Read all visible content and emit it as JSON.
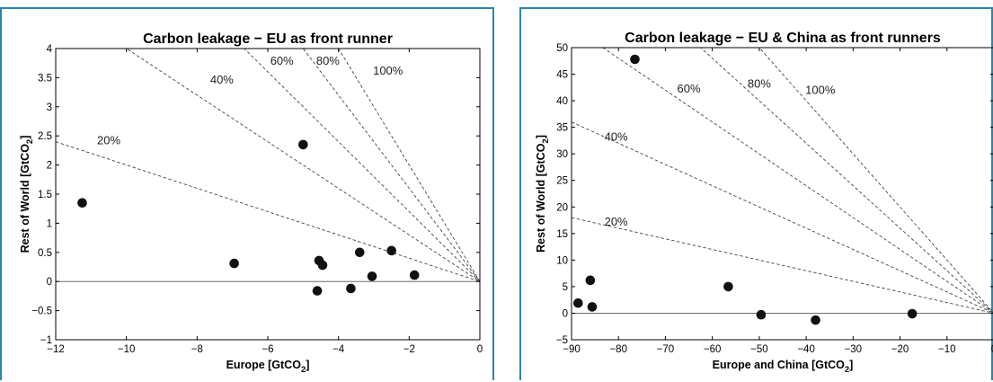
{
  "chart_data": [
    {
      "type": "scatter",
      "title": "Carbon leakage − EU as front runner",
      "xlabel": "Europe [GtCO",
      "xlabel_sub": "2",
      "xlabel_end": "]",
      "ylabel": "Rest of World [GtCO",
      "ylabel_sub": "2",
      "ylabel_end": "]",
      "xlim": [
        -12,
        0
      ],
      "ylim": [
        -1,
        4
      ],
      "xticks": [
        "−12",
        "−10",
        "−8",
        "−6",
        "−4",
        "−2",
        "0"
      ],
      "xtick_values": [
        -12,
        -10,
        -8,
        -6,
        -4,
        -2,
        0
      ],
      "yticks": [
        "−1",
        "−0.5",
        "0",
        "0.5",
        "1",
        "1.5",
        "2",
        "2.5",
        "3",
        "3.5",
        "4"
      ],
      "ytick_values": [
        -1,
        -0.5,
        0,
        0.5,
        1,
        1.5,
        2,
        2.5,
        3,
        3.5,
        4
      ],
      "points": [
        {
          "x": -11.25,
          "y": 1.35
        },
        {
          "x": -6.95,
          "y": 0.31
        },
        {
          "x": -5.0,
          "y": 2.35
        },
        {
          "x": -4.55,
          "y": 0.36
        },
        {
          "x": -4.45,
          "y": 0.28
        },
        {
          "x": -4.6,
          "y": -0.16
        },
        {
          "x": -3.65,
          "y": -0.12
        },
        {
          "x": -3.4,
          "y": 0.5
        },
        {
          "x": -3.05,
          "y": 0.09
        },
        {
          "x": -2.5,
          "y": 0.53
        },
        {
          "x": -1.85,
          "y": 0.11
        }
      ],
      "leakage_lines": [
        {
          "label": "20%",
          "slope": -0.2,
          "label_x": -10.5,
          "label_y": 2.36
        },
        {
          "label": "40%",
          "slope": -0.4,
          "label_x": -7.3,
          "label_y": 3.4
        },
        {
          "label": "60%",
          "slope": -0.6,
          "label_x": -5.6,
          "label_y": 3.72
        },
        {
          "label": "80%",
          "slope": -0.8,
          "label_x": -4.3,
          "label_y": 3.72
        },
        {
          "label": "100%",
          "slope": -1.0,
          "label_x": -2.6,
          "label_y": 3.55
        }
      ],
      "zero_line": true,
      "grid": false
    },
    {
      "type": "scatter",
      "title": "Carbon leakage − EU & China as front runners",
      "xlabel": "Europe and China [GtCO",
      "xlabel_sub": "2",
      "xlabel_end": "]",
      "ylabel": "Rest of World [GtCO",
      "ylabel_sub": "2",
      "ylabel_end": "]",
      "xlim": [
        -90,
        0
      ],
      "ylim": [
        -5,
        50
      ],
      "xticks": [
        "−90",
        "−80",
        "−70",
        "−60",
        "−50",
        "−40",
        "−30",
        "−20",
        "−10",
        "0"
      ],
      "xtick_values": [
        -90,
        -80,
        -70,
        -60,
        -50,
        -40,
        -30,
        -20,
        -10,
        0
      ],
      "yticks": [
        "−5",
        "0",
        "5",
        "10",
        "15",
        "20",
        "25",
        "30",
        "35",
        "40",
        "45",
        "50"
      ],
      "ytick_values": [
        -5,
        0,
        5,
        10,
        15,
        20,
        25,
        30,
        35,
        40,
        45,
        50
      ],
      "points": [
        {
          "x": -76.5,
          "y": 47.8
        },
        {
          "x": -88.6,
          "y": 1.9
        },
        {
          "x": -86.0,
          "y": 6.2
        },
        {
          "x": -85.6,
          "y": 1.2
        },
        {
          "x": -56.6,
          "y": 5.0
        },
        {
          "x": -49.6,
          "y": -0.3
        },
        {
          "x": -38.0,
          "y": -1.3
        },
        {
          "x": -17.4,
          "y": -0.1
        }
      ],
      "leakage_lines": [
        {
          "label": "20%",
          "slope": -0.2,
          "label_x": -80.5,
          "label_y": 16.5
        },
        {
          "label": "40%",
          "slope": -0.4,
          "label_x": -80.5,
          "label_y": 32.5
        },
        {
          "label": "60%",
          "slope": -0.6,
          "label_x": -65.0,
          "label_y": 41.5
        },
        {
          "label": "80%",
          "slope": -0.8,
          "label_x": -50.0,
          "label_y": 42.5
        },
        {
          "label": "100%",
          "slope": -1.0,
          "label_x": -37.0,
          "label_y": 41.3
        }
      ],
      "zero_line": true,
      "grid": false
    }
  ]
}
